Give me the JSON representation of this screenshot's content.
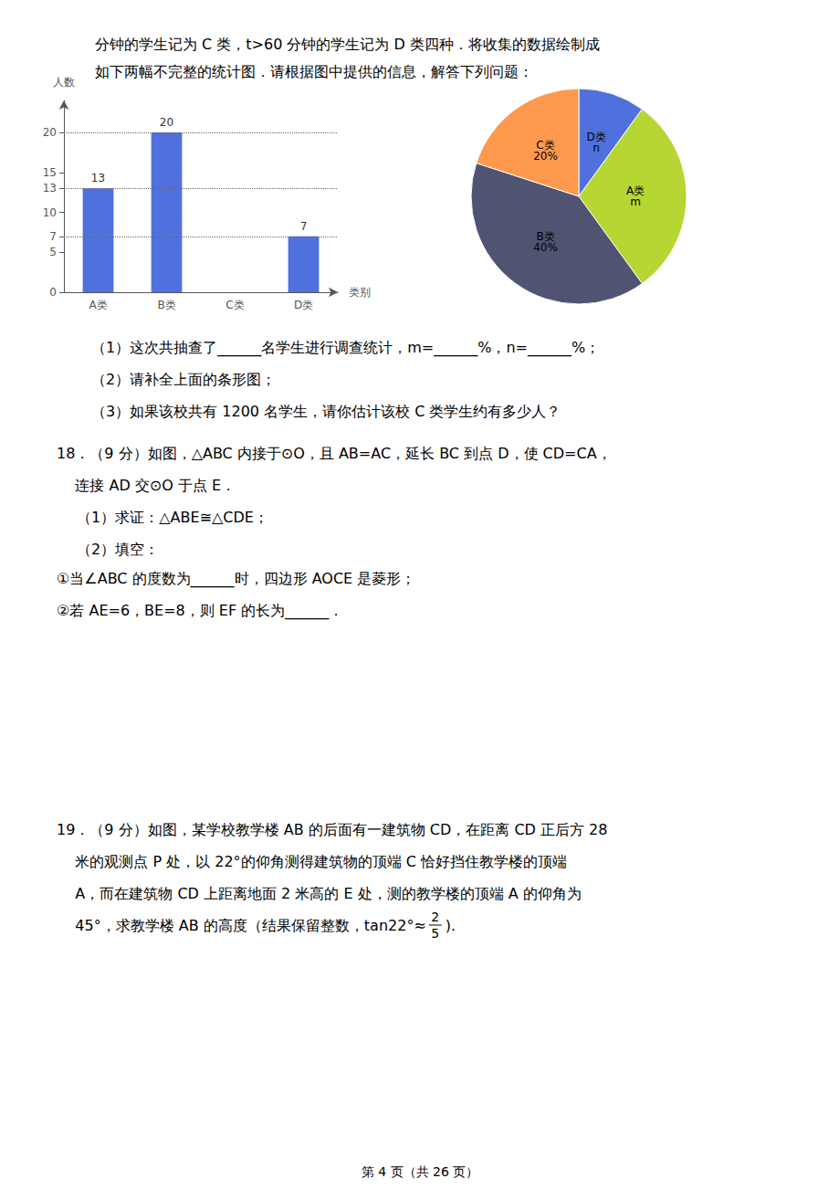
{
  "chart_data": [
    {
      "type": "bar",
      "categories": [
        "A类",
        "B类",
        "C类",
        "D类"
      ],
      "values": [
        13,
        20,
        0,
        7
      ],
      "data_labels": true,
      "value_labels": [
        "13",
        "20",
        null,
        "7"
      ],
      "xlabel": "类别",
      "ylabel": "人数",
      "ylim": [
        0,
        24
      ],
      "yticks": [
        0,
        5,
        7,
        10,
        13,
        15,
        20
      ],
      "reference_lines": [
        7,
        13,
        20
      ],
      "grid": false,
      "annotations": [
        "分钟的学生记为 C 类，t>60 分钟的学生记为 D 类四种．将收集的数据绘制成",
        "如下两幅不完整的统计图．请根据图中提供的信息，解答下列问题：",
        "（1）这次共抽查了______名学生进行调查统计，m=______%，n=______%；",
        "（2）请补全上面的条形图；",
        "（3）如果该校共有 1200 名学生，请你估计该校 C 类学生约有多少人？",
        "18．（9 分）如图，△ABC 内接于⊙O，且 AB=AC，延长 BC 到点 D，使 CD=CA，",
        "    连接 AD 交⊙O 于点 E．",
        "（1）求证：△ABE≅△CDE；",
        "（2）填空：",
        "①当∠ABC 的度数为______时，四边形 AOCE 是菱形；",
        "②若 AE=6，BE=8，则 EF 的长为______．",
        "19．（9 分）如图，某学校教学楼 AB 的后面有一建筑物 CD，在距离 CD 正后方 28",
        "    米的观测点 P 处，以 22°的仰角测得建筑物的顶端 C 恰好挡住教学楼的顶端",
        "    A，而在建筑物 CD 上距离地面 2 米高的 E 处，测的教学楼的顶端 A 的仰角为",
        "    45°，求教学楼 AB 的高度（结果保留整数，tan22°≈",
        "2",
        "5",
        ").",
        "第 4 页（共 26 页）"
      ]
    },
    {
      "type": "pie",
      "categories": [
        "D类",
        "A类",
        "B类",
        "C类"
      ],
      "values": [
        10,
        30,
        40,
        20
      ],
      "data_labels": true,
      "value_labels": [
        "n",
        "m",
        "40%",
        "20%"
      ]
    }
  ]
}
